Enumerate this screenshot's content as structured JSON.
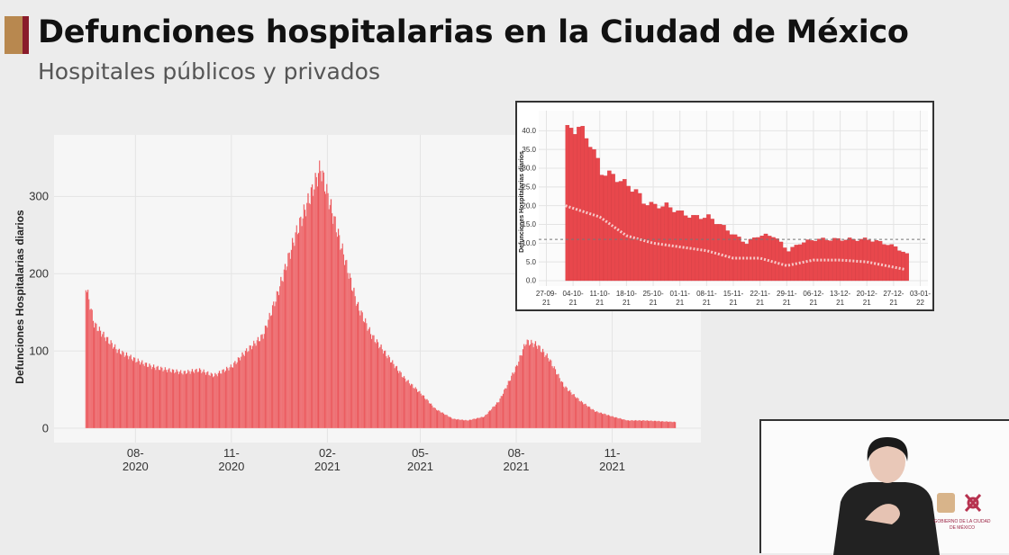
{
  "header": {
    "title": "Defunciones hospitalarias en la Ciudad de México",
    "subtitle": "Hospitales públicos y privados"
  },
  "colors": {
    "bar": "#e8474c",
    "accent_gold": "#b8884f",
    "accent_red": "#8a1c2b"
  },
  "logo": {
    "text": "GOBIERNO DE LA CIUDAD DE MÉXICO"
  },
  "chart_data": [
    {
      "type": "bar",
      "title": "",
      "xlabel": "",
      "ylabel": "Defunciones Hospitalarias diarios",
      "ylim": [
        0,
        340
      ],
      "yticks": [
        0,
        100,
        200,
        300
      ],
      "xticks": [
        {
          "date": "2020-08-01",
          "label": "08-",
          "label2": "2020"
        },
        {
          "date": "2020-11-01",
          "label": "11-",
          "label2": "2020"
        },
        {
          "date": "2021-02-01",
          "label": "02-",
          "label2": "2021"
        },
        {
          "date": "2021-05-01",
          "label": "05-",
          "label2": "2021"
        },
        {
          "date": "2021-08-01",
          "label": "08-",
          "label2": "2021"
        },
        {
          "date": "2021-11-01",
          "label": "11-",
          "label2": "2021"
        }
      ],
      "xlim": [
        "2020-05-15",
        "2022-01-25"
      ],
      "grid": true,
      "points": [
        [
          "2020-06-14",
          185
        ],
        [
          "2020-06-22",
          135
        ],
        [
          "2020-07-01",
          120
        ],
        [
          "2020-07-15",
          100
        ],
        [
          "2020-08-01",
          88
        ],
        [
          "2020-08-15",
          80
        ],
        [
          "2020-09-01",
          75
        ],
        [
          "2020-09-15",
          72
        ],
        [
          "2020-10-01",
          75
        ],
        [
          "2020-10-15",
          68
        ],
        [
          "2020-11-01",
          80
        ],
        [
          "2020-11-15",
          100
        ],
        [
          "2020-12-01",
          120
        ],
        [
          "2020-12-15",
          175
        ],
        [
          "2021-01-01",
          250
        ],
        [
          "2021-01-15",
          300
        ],
        [
          "2021-01-25",
          337
        ],
        [
          "2021-02-01",
          300
        ],
        [
          "2021-02-15",
          230
        ],
        [
          "2021-03-01",
          160
        ],
        [
          "2021-03-15",
          120
        ],
        [
          "2021-04-01",
          90
        ],
        [
          "2021-04-15",
          65
        ],
        [
          "2021-05-01",
          45
        ],
        [
          "2021-05-15",
          25
        ],
        [
          "2021-06-01",
          12
        ],
        [
          "2021-06-15",
          10
        ],
        [
          "2021-07-01",
          15
        ],
        [
          "2021-07-15",
          35
        ],
        [
          "2021-08-01",
          80
        ],
        [
          "2021-08-10",
          112
        ],
        [
          "2021-08-20",
          108
        ],
        [
          "2021-09-01",
          90
        ],
        [
          "2021-09-15",
          55
        ],
        [
          "2021-10-01",
          35
        ],
        [
          "2021-10-15",
          22
        ],
        [
          "2021-11-01",
          15
        ],
        [
          "2021-11-15",
          10
        ],
        [
          "2021-12-01",
          10
        ],
        [
          "2021-12-31",
          8
        ]
      ]
    },
    {
      "type": "bar",
      "title": "",
      "xlabel": "",
      "ylabel": "Defunciones Hospitalarias diarios",
      "ylim": [
        0,
        42
      ],
      "yticks": [
        "0.0",
        "5.0",
        "10.0",
        "15.0",
        "20.0",
        "25.0",
        "30.0",
        "35.0",
        "40.0"
      ],
      "reference_line": 11,
      "xticks": [
        {
          "date": "2021-09-27",
          "label": "27-09-",
          "label2": "21"
        },
        {
          "date": "2021-10-04",
          "label": "04-10-",
          "label2": "21"
        },
        {
          "date": "2021-10-11",
          "label": "11-10-",
          "label2": "21"
        },
        {
          "date": "2021-10-18",
          "label": "18-10-",
          "label2": "21"
        },
        {
          "date": "2021-10-25",
          "label": "25-10-",
          "label2": "21"
        },
        {
          "date": "2021-11-01",
          "label": "01-11-",
          "label2": "21"
        },
        {
          "date": "2021-11-08",
          "label": "08-11-",
          "label2": "21"
        },
        {
          "date": "2021-11-15",
          "label": "15-11-",
          "label2": "21"
        },
        {
          "date": "2021-11-22",
          "label": "22-11-",
          "label2": "21"
        },
        {
          "date": "2021-11-29",
          "label": "29-11-",
          "label2": "21"
        },
        {
          "date": "2021-12-06",
          "label": "06-12-",
          "label2": "21"
        },
        {
          "date": "2021-12-13",
          "label": "13-12-",
          "label2": "21"
        },
        {
          "date": "2021-12-20",
          "label": "20-12-",
          "label2": "21"
        },
        {
          "date": "2021-12-27",
          "label": "27-12-",
          "label2": "21"
        },
        {
          "date": "2022-01-03",
          "label": "03-01-",
          "label2": "22"
        }
      ],
      "xlim": [
        "2021-09-25",
        "2022-01-05"
      ],
      "grid": true,
      "points": [
        [
          "2021-10-02",
          40
        ],
        [
          "2021-10-05",
          41
        ],
        [
          "2021-10-08",
          37
        ],
        [
          "2021-10-11",
          29
        ],
        [
          "2021-10-14",
          28
        ],
        [
          "2021-10-17",
          26
        ],
        [
          "2021-10-20",
          24
        ],
        [
          "2021-10-22",
          21
        ],
        [
          "2021-10-25",
          20
        ],
        [
          "2021-10-28",
          20
        ],
        [
          "2021-11-01",
          18
        ],
        [
          "2021-11-04",
          17
        ],
        [
          "2021-11-08",
          17
        ],
        [
          "2021-11-11",
          15
        ],
        [
          "2021-11-15",
          12
        ],
        [
          "2021-11-18",
          10
        ],
        [
          "2021-11-21",
          12
        ],
        [
          "2021-11-25",
          12
        ],
        [
          "2021-11-29",
          8
        ],
        [
          "2021-12-02",
          10
        ],
        [
          "2021-12-06",
          11
        ],
        [
          "2021-12-13",
          11
        ],
        [
          "2021-12-20",
          11
        ],
        [
          "2021-12-24",
          10
        ],
        [
          "2021-12-27",
          9
        ],
        [
          "2021-12-30",
          7
        ]
      ],
      "moving_average": [
        [
          "2021-10-02",
          20
        ],
        [
          "2021-10-11",
          17
        ],
        [
          "2021-10-18",
          12
        ],
        [
          "2021-10-25",
          10
        ],
        [
          "2021-11-01",
          9
        ],
        [
          "2021-11-08",
          8
        ],
        [
          "2021-11-15",
          6
        ],
        [
          "2021-11-22",
          6
        ],
        [
          "2021-11-29",
          4
        ],
        [
          "2021-12-06",
          5.5
        ],
        [
          "2021-12-13",
          5.5
        ],
        [
          "2021-12-20",
          5
        ],
        [
          "2021-12-30",
          3
        ]
      ]
    }
  ]
}
